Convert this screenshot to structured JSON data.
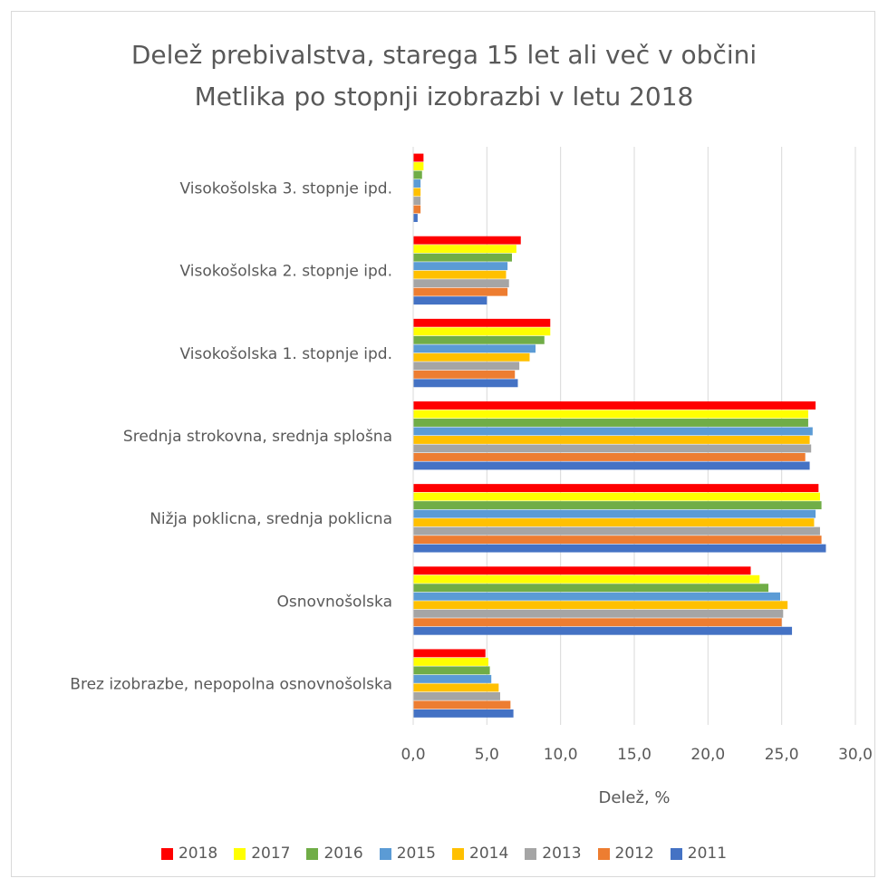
{
  "chart_data": {
    "type": "bar",
    "orientation": "horizontal",
    "title": "Delež prebivalstva, starega 15 let ali več v občini Metlika po stopnji izobrazbi v letu 2018",
    "title_lines": [
      "Delež prebivalstva, starega 15 let ali več v občini",
      "Metlika po stopnji izobrazbi v letu 2018"
    ],
    "xlabel": "Delež, %",
    "ylabel": "",
    "xlim": [
      0,
      30
    ],
    "xticks": [
      "0,0",
      "5,0",
      "10,0",
      "15,0",
      "20,0",
      "25,0",
      "30,0"
    ],
    "grid": true,
    "legend_position": "bottom",
    "categories": [
      "Visokošolska 3. stopnje ipd.",
      "Visokošolska 2. stopnje ipd.",
      "Visokošolska 1. stopnje ipd.",
      "Srednja strokovna, srednja splošna",
      "Nižja poklicna, srednja poklicna",
      "Osnovnošolska",
      "Brez izobrazbe, nepopolna osnovnošolska"
    ],
    "series": [
      {
        "name": "2018",
        "color": "#ff0000",
        "values": [
          0.7,
          7.3,
          9.3,
          27.3,
          27.5,
          22.9,
          4.9
        ]
      },
      {
        "name": "2017",
        "color": "#ffff00",
        "values": [
          0.7,
          7.0,
          9.3,
          26.8,
          27.6,
          23.5,
          5.1
        ]
      },
      {
        "name": "2016",
        "color": "#70ad47",
        "values": [
          0.6,
          6.7,
          8.9,
          26.8,
          27.7,
          24.1,
          5.2
        ]
      },
      {
        "name": "2015",
        "color": "#5b9bd5",
        "values": [
          0.5,
          6.4,
          8.3,
          27.1,
          27.3,
          24.9,
          5.3
        ]
      },
      {
        "name": "2014",
        "color": "#ffc000",
        "values": [
          0.5,
          6.3,
          7.9,
          26.9,
          27.2,
          25.4,
          5.8
        ]
      },
      {
        "name": "2013",
        "color": "#a5a5a5",
        "values": [
          0.5,
          6.5,
          7.2,
          27.0,
          27.6,
          25.1,
          5.9
        ]
      },
      {
        "name": "2012",
        "color": "#ed7d31",
        "values": [
          0.5,
          6.4,
          6.9,
          26.6,
          27.7,
          25.0,
          6.6
        ]
      },
      {
        "name": "2011",
        "color": "#4472c4",
        "values": [
          0.3,
          5.0,
          7.1,
          26.9,
          28.0,
          25.7,
          6.8
        ]
      }
    ]
  }
}
